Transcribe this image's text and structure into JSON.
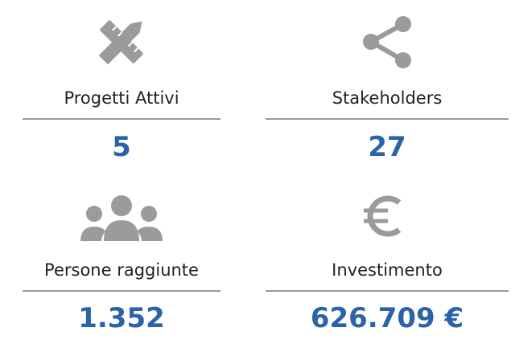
{
  "stats": [
    {
      "label": "Progetti Attivi",
      "value": "5"
    },
    {
      "label": "Stakeholders",
      "value": "27"
    },
    {
      "label": "Persone raggiunte",
      "value": "1.352"
    },
    {
      "label": "Investimento",
      "value": "626.709 €"
    }
  ]
}
